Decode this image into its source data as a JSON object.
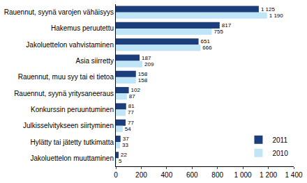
{
  "chart_data": {
    "type": "bar",
    "orientation": "horizontal",
    "categories": [
      "Rauennut, syynä varojen vähäisyys",
      "Hakemus peruutettu",
      "Jakoluettelon vahvistaminen",
      "Asia siirretty",
      "Rauennut, muu syy tai ei tietoa",
      "Rauennut, syynä yritysaneeraus",
      "Konkurssin peruuntuminen",
      "Julkisselvitykseen siirtyminen",
      "Hylätty tai jätetty tutkimatta",
      "Jakoluettelon muuttaminen"
    ],
    "series": [
      {
        "name": "2011",
        "color": "#1c3f7c",
        "values": [
          1125,
          817,
          651,
          187,
          158,
          102,
          81,
          77,
          37,
          22
        ],
        "value_labels": [
          "1 125",
          "817",
          "651",
          "187",
          "158",
          "102",
          "81",
          "77",
          "37",
          "22"
        ]
      },
      {
        "name": "2010",
        "color": "#bfe5f7",
        "values": [
          1190,
          755,
          666,
          209,
          158,
          87,
          77,
          54,
          33,
          5
        ],
        "value_labels": [
          "1 190",
          "755",
          "666",
          "209",
          "158",
          "87",
          "77",
          "54",
          "33",
          "5"
        ]
      }
    ],
    "xlim": [
      0,
      1400
    ],
    "xticks": [
      0,
      200,
      400,
      600,
      800,
      {
        "value": 1000,
        "label": "1 000"
      },
      {
        "value": 1200,
        "label": "1 200"
      },
      {
        "value": 1400,
        "label": "1 400"
      }
    ],
    "data_labels": true,
    "grid": false,
    "legend": "bottom-right"
  }
}
